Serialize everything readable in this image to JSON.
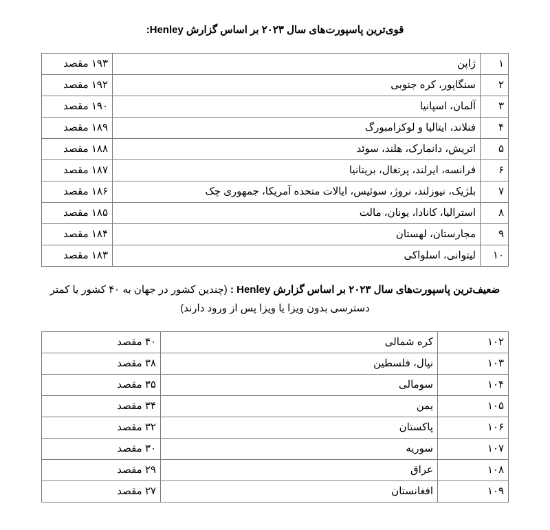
{
  "strongest": {
    "title_pre": "قوی‌ترین پاسپورت‌های سال ۲۰۲۳ بر اساس گزارش ",
    "title_en": "Henley",
    "title_post": ":",
    "rows": [
      {
        "rank": "۱",
        "country": "ژاپن",
        "score": "۱۹۳ مقصد"
      },
      {
        "rank": "۲",
        "country": "سنگاپور، کره جنوبی",
        "score": "۱۹۲ مقصد"
      },
      {
        "rank": "۳",
        "country": "آلمان، اسپانیا",
        "score": "۱۹۰ مقصد"
      },
      {
        "rank": "۴",
        "country": "فنلاند، ایتالیا و لوکزامبورگ",
        "score": "۱۸۹ مقصد"
      },
      {
        "rank": "۵",
        "country": "اتریش، دانمارک، هلند، سوئد",
        "score": "۱۸۸ مقصد"
      },
      {
        "rank": "۶",
        "country": "فرانسه، ایرلند، پرتغال، بریتانیا",
        "score": "۱۸۷ مقصد"
      },
      {
        "rank": "۷",
        "country": "بلژیک، نیوزلند، نروژ، سوئیس، ایالات متحده آمریکا، جمهوری چک",
        "score": "۱۸۶ مقصد"
      },
      {
        "rank": "۸",
        "country": "استرالیا، کانادا، یونان، مالت",
        "score": "۱۸۵ مقصد"
      },
      {
        "rank": "۹",
        "country": "مجارستان، لهستان",
        "score": "۱۸۴ مقصد"
      },
      {
        "rank": "۱۰",
        "country": "لیتوانی، اسلواکی",
        "score": "۱۸۳ مقصد"
      }
    ]
  },
  "weakest": {
    "title_pre": "ضعیف‌ترین پاسپورت‌های سال ۲۰۲۳ بر اساس گزارش ",
    "title_en": "Henley",
    "title_mid": " : ",
    "title_rest": "(چندین کشور در جهان به ۴۰ کشور یا کمتر دسترسی بدون ویزا یا ویزا پس از ورود دارند)",
    "rows": [
      {
        "rank": "۱۰۲",
        "country": "کره شمالی",
        "score": "۴۰ مقصد"
      },
      {
        "rank": "۱۰۳",
        "country": "نپال، فلسطین",
        "score": "۳۸ مقصد"
      },
      {
        "rank": "۱۰۴",
        "country": "سومالی",
        "score": "۳۵ مقصد"
      },
      {
        "rank": "۱۰۵",
        "country": "یمن",
        "score": "۳۴ مقصد"
      },
      {
        "rank": "۱۰۶",
        "country": "پاکستان",
        "score": "۳۲ مقصد"
      },
      {
        "rank": "۱۰۷",
        "country": "سوریه",
        "score": "۳۰ مقصد"
      },
      {
        "rank": "۱۰۸",
        "country": "عراق",
        "score": "۲۹ مقصد"
      },
      {
        "rank": "۱۰۹",
        "country": "افغانستان",
        "score": "۲۷ مقصد"
      }
    ]
  }
}
